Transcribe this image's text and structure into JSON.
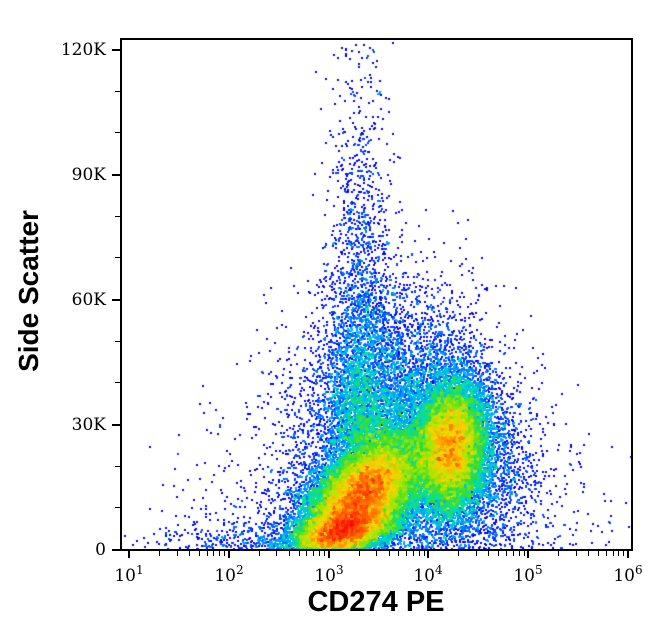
{
  "chart_data": {
    "type": "scatter",
    "subtype": "flow-cytometry-pseudocolor-density-plot",
    "title": "",
    "xlabel": "CD274 PE",
    "ylabel": "Side Scatter",
    "x_scale": "log10",
    "x_log10_range": [
      0.92,
      6.04
    ],
    "ylim": [
      0,
      122500
    ],
    "grid": false,
    "legend": false,
    "x_ticks": [
      {
        "base": "10",
        "exp": "1",
        "log10": 1
      },
      {
        "base": "10",
        "exp": "2",
        "log10": 2
      },
      {
        "base": "10",
        "exp": "3",
        "log10": 3
      },
      {
        "base": "10",
        "exp": "4",
        "log10": 4
      },
      {
        "base": "10",
        "exp": "5",
        "log10": 5
      },
      {
        "base": "10",
        "exp": "6",
        "log10": 6
      }
    ],
    "x_minor_multipliers": [
      2,
      3,
      4,
      5,
      6,
      7,
      8,
      9
    ],
    "y_ticks": [
      {
        "label": "0",
        "value_k": 0
      },
      {
        "label": "30K",
        "value_k": 30
      },
      {
        "label": "60K",
        "value_k": 60
      },
      {
        "label": "90K",
        "value_k": 90
      },
      {
        "label": "120K",
        "value_k": 120
      }
    ],
    "y_minor_step_k": 10,
    "y_max_k": 122.5,
    "colormap": {
      "name": "jet-pseudocolor",
      "stops": [
        [
          0.0,
          [
            0,
            0,
            235
          ]
        ],
        [
          0.18,
          [
            0,
            70,
            255
          ]
        ],
        [
          0.35,
          [
            0,
            170,
            255
          ]
        ],
        [
          0.48,
          [
            0,
            225,
            170
          ]
        ],
        [
          0.58,
          [
            50,
            220,
            50
          ]
        ],
        [
          0.7,
          [
            170,
            230,
            0
          ]
        ],
        [
          0.8,
          [
            255,
            210,
            0
          ]
        ],
        [
          0.88,
          [
            255,
            120,
            0
          ]
        ],
        [
          1.0,
          [
            255,
            0,
            0
          ]
        ]
      ]
    },
    "render": {
      "seed": 42,
      "dot_size": 2,
      "bin_size": 3
    },
    "populations": [
      {
        "name": "cd274_mid_main",
        "count": 26000,
        "cx_log10": 3.32,
        "sx_log10": 0.3,
        "cy_ssc": 13000,
        "sy_ssc": 7500,
        "rho": 0.55
      },
      {
        "name": "cd274_mid_low_ssc",
        "count": 6000,
        "cx_log10": 3.12,
        "sx_log10": 0.24,
        "cy_ssc": 4500,
        "sy_ssc": 2800,
        "rho": 0.45
      },
      {
        "name": "cd274_high",
        "count": 15000,
        "cx_log10": 4.22,
        "sx_log10": 0.18,
        "cy_ssc": 25000,
        "sy_ssc": 8200,
        "rho": 0.1
      },
      {
        "name": "cd274_high_right_tail",
        "count": 1500,
        "cx_log10": 4.5,
        "sx_log10": 0.3,
        "cy_ssc": 22000,
        "sy_ssc": 11000,
        "rho": 0.0
      },
      {
        "name": "high_ssc_plume",
        "type": "plume",
        "count": 2800,
        "cx_log10": 3.3,
        "sx_log10": 0.16,
        "ssc_base": 26000,
        "ssc_decay": 28000,
        "ssc_max": 122000
      },
      {
        "name": "mid_ssc_haze",
        "count": 5200,
        "cx_log10": 3.55,
        "sx_log10": 0.42,
        "cy_ssc": 36000,
        "sy_ssc": 14000,
        "rho": 0.15
      },
      {
        "name": "background_scatter",
        "count": 2400,
        "cx_log10": 3.6,
        "sx_log10": 0.85,
        "cy_ssc": 8000,
        "sy_ssc": 16000,
        "rho": 0.0,
        "reflect_y": true
      },
      {
        "name": "left_low_ssc_tail",
        "count": 450,
        "cx_log10": 2.45,
        "sx_log10": 0.6,
        "cy_ssc": 2500,
        "sy_ssc": 2200,
        "rho": 0.0,
        "reflect_y": true
      }
    ]
  }
}
